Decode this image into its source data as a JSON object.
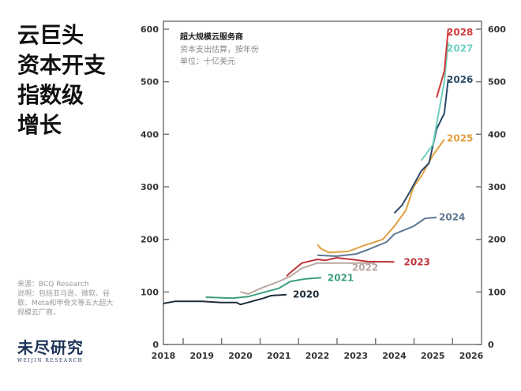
{
  "headline": [
    "云巨头",
    "资本开支",
    "指数级",
    "增长"
  ],
  "note": {
    "source": "来源：BCQ Research",
    "explain": "说明：包括亚马逊、微软、谷歌、Meta和甲骨文等五大超大规模云厂商。"
  },
  "logo": {
    "cn": "未尽研究",
    "en": "WEIJIN RESEARCH"
  },
  "chart_data": {
    "type": "line",
    "title": "超大规模云服务商",
    "subtitle": "资本支出估算，按年份",
    "unit": "单位：十亿美元",
    "xlim": [
      2018,
      2026
    ],
    "ylim": [
      0,
      600
    ],
    "x_ticks": [
      "2018",
      "2019",
      "2020",
      "2021",
      "2022",
      "2023",
      "2024",
      "2025",
      "2026"
    ],
    "y_ticks": [
      "0",
      "100",
      "200",
      "300",
      "400",
      "500",
      "600"
    ],
    "grid": false,
    "series": [
      {
        "name": "2020",
        "color": "#1f2d3a",
        "x": [
          2018,
          2018.3,
          2019,
          2019.5,
          2019.9,
          2020,
          2020.3,
          2020.6,
          2020.8,
          2021.2
        ],
        "y": [
          78,
          82,
          82,
          80,
          80,
          76,
          82,
          88,
          93,
          95
        ]
      },
      {
        "name": "2021",
        "color": "#3d9e80",
        "x": [
          2019.1,
          2019.8,
          2020.2,
          2020.5,
          2021,
          2021.3,
          2021.7,
          2022.1
        ],
        "y": [
          90,
          88,
          91,
          97,
          107,
          120,
          125,
          127
        ]
      },
      {
        "name": "2022",
        "color": "#b8a8a0",
        "x": [
          2020,
          2020.2,
          2020.5,
          2021,
          2021.3,
          2021.6,
          2022,
          2023.5
        ],
        "y": [
          100,
          96,
          106,
          120,
          130,
          145,
          155,
          155
        ]
      },
      {
        "name": "2023",
        "color": "#c0343c",
        "x": [
          2021.2,
          2021.3,
          2021.6,
          2022,
          2022.2,
          2022.5,
          2023,
          2023.3,
          2024
        ],
        "y": [
          130,
          137,
          155,
          162,
          160,
          165,
          161,
          158,
          157
        ]
      },
      {
        "name": "2024",
        "color": "#5d7891",
        "x": [
          2022,
          2022.5,
          2023,
          2023.3,
          2023.8,
          2024,
          2024.5,
          2024.8,
          2025.1
        ],
        "y": [
          170,
          168,
          172,
          180,
          195,
          210,
          225,
          240,
          242
        ]
      },
      {
        "name": "2025",
        "color": "#e0a040",
        "x": [
          2022,
          2022.1,
          2022.3,
          2022.8,
          2023.2,
          2023.7,
          2024,
          2024.3,
          2024.5,
          2024.7,
          2025,
          2025.3
        ],
        "y": [
          190,
          182,
          175,
          177,
          188,
          200,
          225,
          255,
          300,
          320,
          360,
          390
        ]
      },
      {
        "name": "2026",
        "color": "#2c4a66",
        "x": [
          2024,
          2024.2,
          2024.4,
          2024.7,
          2024.9,
          2025.1,
          2025.3,
          2025.4
        ],
        "y": [
          250,
          265,
          290,
          330,
          345,
          410,
          440,
          505
        ]
      },
      {
        "name": "2027",
        "color": "#6fcfc0",
        "x": [
          2024.7,
          2025,
          2025.3,
          2025.4
        ],
        "y": [
          350,
          380,
          500,
          575
        ]
      },
      {
        "name": "2028",
        "color": "#d23a3a",
        "x": [
          2025.1,
          2025.3,
          2025.4
        ],
        "y": [
          470,
          520,
          600
        ]
      }
    ]
  }
}
